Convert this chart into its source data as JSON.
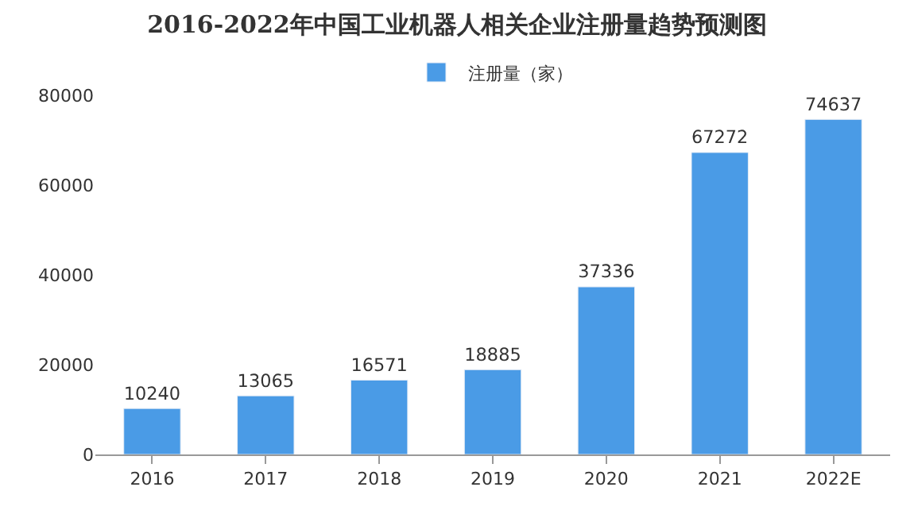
{
  "chart_data": {
    "type": "bar",
    "title": "2016-2022年中国工业机器人相关企业注册量趋势预测图",
    "categories": [
      "2016",
      "2017",
      "2018",
      "2019",
      "2020",
      "2021",
      "2022E"
    ],
    "series": [
      {
        "name": "注册量（家）",
        "color": "#4a9be6",
        "values": [
          10240,
          13065,
          16571,
          18885,
          37336,
          67272,
          74637
        ]
      }
    ],
    "ylim": [
      0,
      80000
    ],
    "yticks": [
      0,
      20000,
      40000,
      60000,
      80000
    ],
    "legend": "top",
    "data_labels": true
  }
}
